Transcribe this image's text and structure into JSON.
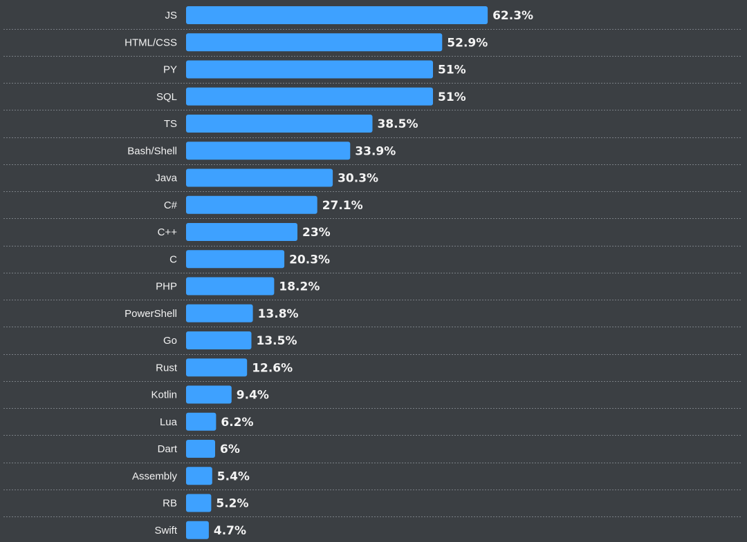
{
  "colors": {
    "background": "#3b3f43",
    "bar": "#3ea1ff",
    "text": "#f2f2f2",
    "separator": "#7b8086"
  },
  "chart_data": {
    "type": "bar",
    "orientation": "horizontal",
    "title": "",
    "xlabel": "",
    "ylabel": "",
    "xlim": [
      0,
      100
    ],
    "grid": false,
    "value_suffix": "%",
    "categories": [
      "JS",
      "HTML/CSS",
      "PY",
      "SQL",
      "TS",
      "Bash/Shell",
      "Java",
      "C#",
      "C++",
      "C",
      "PHP",
      "PowerShell",
      "Go",
      "Rust",
      "Kotlin",
      "Lua",
      "Dart",
      "Assembly",
      "RB",
      "Swift"
    ],
    "values": [
      62.3,
      52.9,
      51,
      51,
      38.5,
      33.9,
      30.3,
      27.1,
      23,
      20.3,
      18.2,
      13.8,
      13.5,
      12.6,
      9.4,
      6.2,
      6,
      5.4,
      5.2,
      4.7
    ],
    "value_labels": [
      "62.3%",
      "52.9%",
      "51%",
      "51%",
      "38.5%",
      "33.9%",
      "30.3%",
      "27.1%",
      "23%",
      "20.3%",
      "18.2%",
      "13.8%",
      "13.5%",
      "12.6%",
      "9.4%",
      "6.2%",
      "6%",
      "5.4%",
      "5.2%",
      "4.7%"
    ]
  }
}
